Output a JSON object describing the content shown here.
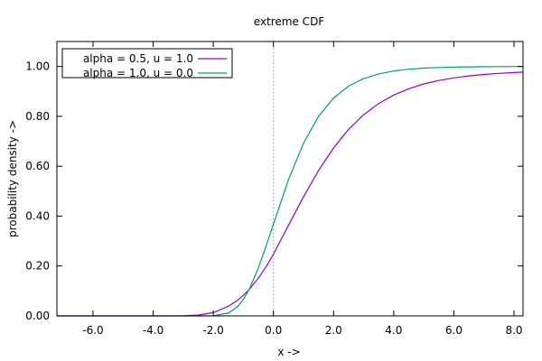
{
  "chart_data": {
    "type": "line",
    "title": "extreme CDF",
    "xlabel": "x ->",
    "ylabel": "probability density ->",
    "xlim": [
      -7.2,
      8.3
    ],
    "ylim": [
      0,
      1.1
    ],
    "x_ticks": [
      -6,
      -4,
      -2,
      0,
      2,
      4,
      6,
      8
    ],
    "x_tick_labels": [
      "-6.0",
      "-4.0",
      "-2.0",
      "0.0",
      "2.0",
      "4.0",
      "6.0",
      "8.0"
    ],
    "y_ticks": [
      0,
      0.2,
      0.4,
      0.6,
      0.8,
      1.0
    ],
    "y_tick_labels": [
      "0.00",
      "0.20",
      "0.40",
      "0.60",
      "0.80",
      "1.00"
    ],
    "grid": false,
    "reference_line": {
      "x": 0,
      "style": "dotted"
    },
    "legend_position": "top-left",
    "x": [
      -7.2,
      -6,
      -5,
      -4,
      -3.5,
      -3,
      -2.5,
      -2,
      -1.5,
      -1.2,
      -1,
      -0.8,
      -0.5,
      -0.2,
      0,
      0.5,
      1,
      1.5,
      2,
      2.5,
      3,
      3.5,
      4,
      4.5,
      5,
      5.5,
      6,
      6.5,
      7,
      7.5,
      8,
      8.3
    ],
    "series": [
      {
        "name": "alpha = 0.5, u = 1.0",
        "color": "#9400d3",
        "values": [
          0,
          0,
          0,
          0,
          0.0001,
          0.0005,
          0.0032,
          0.0131,
          0.0382,
          0.0619,
          0.0825,
          0.1069,
          0.1514,
          0.2053,
          0.2476,
          0.363,
          0.4773,
          0.5826,
          0.6735,
          0.7478,
          0.8065,
          0.8515,
          0.8855,
          0.9109,
          0.9298,
          0.9438,
          0.9543,
          0.9621,
          0.9679,
          0.9723,
          0.9757,
          0.9774
        ]
      },
      {
        "name": "alpha = 1.0, u = 0.0",
        "color": "#009e73",
        "values": [
          0,
          0,
          0,
          0,
          0,
          0,
          0,
          0.0006,
          0.0113,
          0.0362,
          0.066,
          0.1077,
          0.1923,
          0.2952,
          0.3679,
          0.5452,
          0.6922,
          0.8,
          0.8734,
          0.9212,
          0.9514,
          0.9702,
          0.9818,
          0.989,
          0.9933,
          0.9959,
          0.9975,
          0.9985,
          0.9991,
          0.9994,
          0.9997,
          0.9997
        ]
      }
    ]
  }
}
